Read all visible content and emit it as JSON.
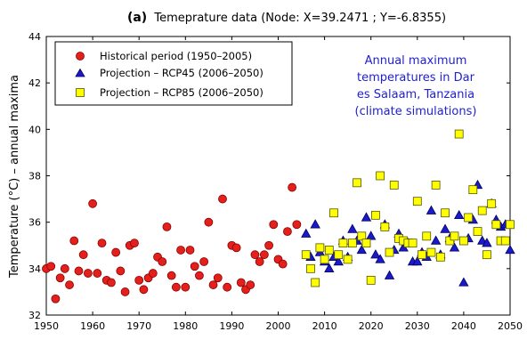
{
  "chart_data": {
    "type": "scatter",
    "title_prefix": "(a)",
    "title": "Temeprature data (Node: X=39.2471 ; Y=-6.8355)",
    "xlabel": "",
    "ylabel": "Temperature (°C) – annual maxima",
    "xlim": [
      1950,
      2050
    ],
    "ylim": [
      32,
      44
    ],
    "xticks": [
      1950,
      1960,
      1970,
      1980,
      1990,
      2000,
      2010,
      2020,
      2030,
      2040,
      2050
    ],
    "yticks": [
      32,
      34,
      36,
      38,
      40,
      42,
      44
    ],
    "grid": false,
    "legend_position": "top-left",
    "annotation": [
      "Annual maximum",
      "temperatures in Dar",
      "es Salaam, Tanzania",
      "(climate simulations)"
    ],
    "colors": {
      "historical": "#e3201b",
      "rcp45": "#1a1ac8",
      "rcp85": "#ffff00",
      "annotation": "#1f1fd0"
    },
    "series": [
      {
        "name": "Historical period (1950–2005)",
        "marker": "circle",
        "points": [
          [
            1950,
            34.0
          ],
          [
            1951,
            34.1
          ],
          [
            1952,
            32.7
          ],
          [
            1953,
            33.6
          ],
          [
            1954,
            34.0
          ],
          [
            1955,
            33.3
          ],
          [
            1956,
            35.2
          ],
          [
            1957,
            33.9
          ],
          [
            1958,
            34.6
          ],
          [
            1959,
            33.8
          ],
          [
            1960,
            36.8
          ],
          [
            1961,
            33.8
          ],
          [
            1962,
            35.1
          ],
          [
            1963,
            33.5
          ],
          [
            1964,
            33.4
          ],
          [
            1965,
            34.7
          ],
          [
            1966,
            33.9
          ],
          [
            1967,
            33.0
          ],
          [
            1968,
            35.0
          ],
          [
            1969,
            35.1
          ],
          [
            1970,
            33.5
          ],
          [
            1971,
            33.1
          ],
          [
            1972,
            33.6
          ],
          [
            1973,
            33.8
          ],
          [
            1974,
            34.5
          ],
          [
            1975,
            34.3
          ],
          [
            1976,
            35.8
          ],
          [
            1977,
            33.7
          ],
          [
            1978,
            33.2
          ],
          [
            1979,
            34.8
          ],
          [
            1980,
            33.2
          ],
          [
            1981,
            34.8
          ],
          [
            1982,
            34.1
          ],
          [
            1983,
            33.7
          ],
          [
            1984,
            34.3
          ],
          [
            1985,
            36.0
          ],
          [
            1986,
            33.3
          ],
          [
            1987,
            33.6
          ],
          [
            1988,
            37.0
          ],
          [
            1989,
            33.2
          ],
          [
            1990,
            35.0
          ],
          [
            1991,
            34.9
          ],
          [
            1992,
            33.4
          ],
          [
            1993,
            33.1
          ],
          [
            1994,
            33.3
          ],
          [
            1995,
            34.6
          ],
          [
            1996,
            34.3
          ],
          [
            1997,
            34.6
          ],
          [
            1998,
            35.0
          ],
          [
            1999,
            35.9
          ],
          [
            2000,
            34.4
          ],
          [
            2001,
            34.2
          ],
          [
            2002,
            35.6
          ],
          [
            2003,
            37.5
          ],
          [
            2004,
            35.9
          ]
        ]
      },
      {
        "name": "Projection – RCP45 (2006–2050)",
        "marker": "triangle",
        "points": [
          [
            2006,
            35.5
          ],
          [
            2007,
            34.5
          ],
          [
            2008,
            35.9
          ],
          [
            2009,
            34.7
          ],
          [
            2010,
            34.3
          ],
          [
            2011,
            34.0
          ],
          [
            2012,
            34.5
          ],
          [
            2013,
            34.3
          ],
          [
            2014,
            35.2
          ],
          [
            2015,
            34.5
          ],
          [
            2016,
            35.7
          ],
          [
            2017,
            35.2
          ],
          [
            2018,
            34.8
          ],
          [
            2019,
            36.2
          ],
          [
            2020,
            35.4
          ],
          [
            2021,
            34.6
          ],
          [
            2022,
            34.4
          ],
          [
            2023,
            35.9
          ],
          [
            2024,
            33.7
          ],
          [
            2025,
            34.8
          ],
          [
            2026,
            35.5
          ],
          [
            2027,
            34.9
          ],
          [
            2028,
            35.1
          ],
          [
            2029,
            34.3
          ],
          [
            2030,
            34.3
          ],
          [
            2031,
            34.7
          ],
          [
            2032,
            34.5
          ],
          [
            2033,
            36.5
          ],
          [
            2034,
            35.2
          ],
          [
            2035,
            34.6
          ],
          [
            2036,
            35.7
          ],
          [
            2037,
            35.3
          ],
          [
            2038,
            34.9
          ],
          [
            2039,
            36.3
          ],
          [
            2040,
            33.4
          ],
          [
            2041,
            35.3
          ],
          [
            2042,
            36.1
          ],
          [
            2043,
            37.6
          ],
          [
            2044,
            35.2
          ],
          [
            2045,
            35.1
          ],
          [
            2046,
            36.8
          ],
          [
            2047,
            36.1
          ],
          [
            2048,
            35.8
          ],
          [
            2049,
            35.9
          ],
          [
            2050,
            34.8
          ]
        ]
      },
      {
        "name": "Projection – RCP85 (2006–2050)",
        "marker": "square",
        "points": [
          [
            2006,
            34.6
          ],
          [
            2007,
            34.0
          ],
          [
            2008,
            33.4
          ],
          [
            2009,
            34.9
          ],
          [
            2010,
            34.4
          ],
          [
            2011,
            34.8
          ],
          [
            2012,
            36.4
          ],
          [
            2013,
            34.6
          ],
          [
            2014,
            35.1
          ],
          [
            2015,
            34.4
          ],
          [
            2016,
            35.1
          ],
          [
            2017,
            37.7
          ],
          [
            2018,
            35.4
          ],
          [
            2019,
            35.1
          ],
          [
            2020,
            33.5
          ],
          [
            2021,
            36.3
          ],
          [
            2022,
            38.0
          ],
          [
            2023,
            35.8
          ],
          [
            2024,
            34.7
          ],
          [
            2025,
            37.6
          ],
          [
            2026,
            35.3
          ],
          [
            2027,
            35.2
          ],
          [
            2028,
            35.1
          ],
          [
            2029,
            35.1
          ],
          [
            2030,
            36.9
          ],
          [
            2031,
            34.6
          ],
          [
            2032,
            35.4
          ],
          [
            2033,
            34.7
          ],
          [
            2034,
            37.6
          ],
          [
            2035,
            34.5
          ],
          [
            2036,
            36.4
          ],
          [
            2037,
            35.2
          ],
          [
            2038,
            35.4
          ],
          [
            2039,
            39.8
          ],
          [
            2040,
            35.2
          ],
          [
            2041,
            36.2
          ],
          [
            2042,
            37.4
          ],
          [
            2043,
            35.6
          ],
          [
            2044,
            36.5
          ],
          [
            2045,
            34.6
          ],
          [
            2046,
            36.8
          ],
          [
            2047,
            35.9
          ],
          [
            2048,
            35.2
          ],
          [
            2049,
            35.2
          ],
          [
            2050,
            35.9
          ]
        ]
      }
    ]
  }
}
